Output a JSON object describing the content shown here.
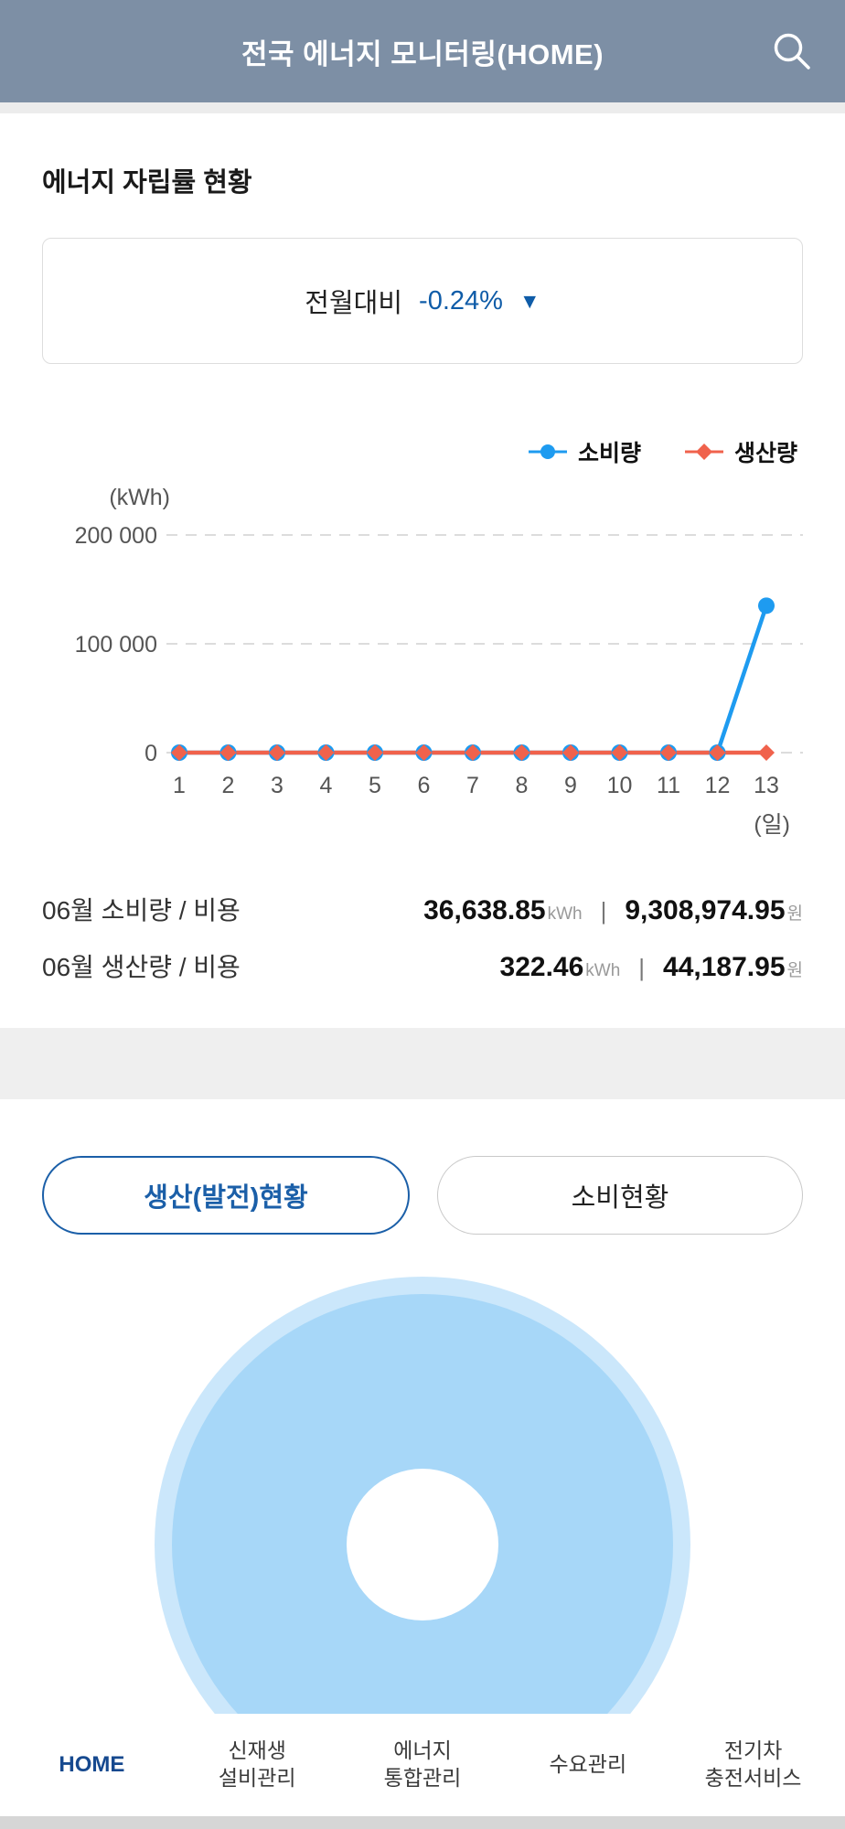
{
  "colors": {
    "header_bg": "#7d8fa5",
    "accent_blue": "#0f5ca8",
    "tab_active": "#1b5fa8",
    "donut_main": "#a7d7f8",
    "donut_outer": "#cbe7fb",
    "nav_active": "#16498f"
  },
  "header": {
    "title": "전국 에너지 모니터링(HOME)",
    "search_icon": "magnifier"
  },
  "energy_section": {
    "title": "에너지 자립률 현황",
    "comparison_label": "전월대비",
    "comparison_value": "-0.24%",
    "comparison_arrow": "▼"
  },
  "chart_data": {
    "type": "line",
    "unit_label": "(kWh)",
    "x_axis_label": "(일)",
    "x": [
      1,
      2,
      3,
      4,
      5,
      6,
      7,
      8,
      9,
      10,
      11,
      12,
      13
    ],
    "series": [
      {
        "name": "소비량",
        "color": "#1e9bf0",
        "marker": "circle",
        "values": [
          0,
          0,
          0,
          0,
          0,
          0,
          0,
          0,
          0,
          0,
          0,
          0,
          135000
        ]
      },
      {
        "name": "생산량",
        "color": "#f0624c",
        "marker": "diamond",
        "values": [
          0,
          0,
          0,
          0,
          0,
          0,
          0,
          0,
          0,
          0,
          0,
          0,
          0
        ]
      }
    ],
    "ylim": [
      0,
      200000
    ],
    "yticks": [
      0,
      100000,
      200000
    ],
    "ytick_labels": [
      "0",
      "100 000",
      "200 000"
    ],
    "grid": "dashed horizontal",
    "legend_position": "top-right"
  },
  "stats": {
    "rows": [
      {
        "label": "06월 소비량 / 비용",
        "energy": "36,638.85",
        "energy_unit": "kWh",
        "separator": "|",
        "cost": "9,308,974.95",
        "cost_unit": "원"
      },
      {
        "label": "06월 생산량 / 비용",
        "energy": "322.46",
        "energy_unit": "kWh",
        "separator": "|",
        "cost": "44,187.95",
        "cost_unit": "원"
      }
    ]
  },
  "tabs": {
    "production": {
      "label": "생산(발전)현황",
      "active": true
    },
    "consumption": {
      "label": "소비현황",
      "active": false
    }
  },
  "bottom_nav": {
    "items": [
      {
        "lines": [
          "HOME"
        ],
        "active": true
      },
      {
        "lines": [
          "신재생",
          "설비관리"
        ]
      },
      {
        "lines": [
          "에너지",
          "통합관리"
        ]
      },
      {
        "lines": [
          "수요관리"
        ]
      },
      {
        "lines": [
          "전기차",
          "충전서비스"
        ]
      }
    ]
  }
}
